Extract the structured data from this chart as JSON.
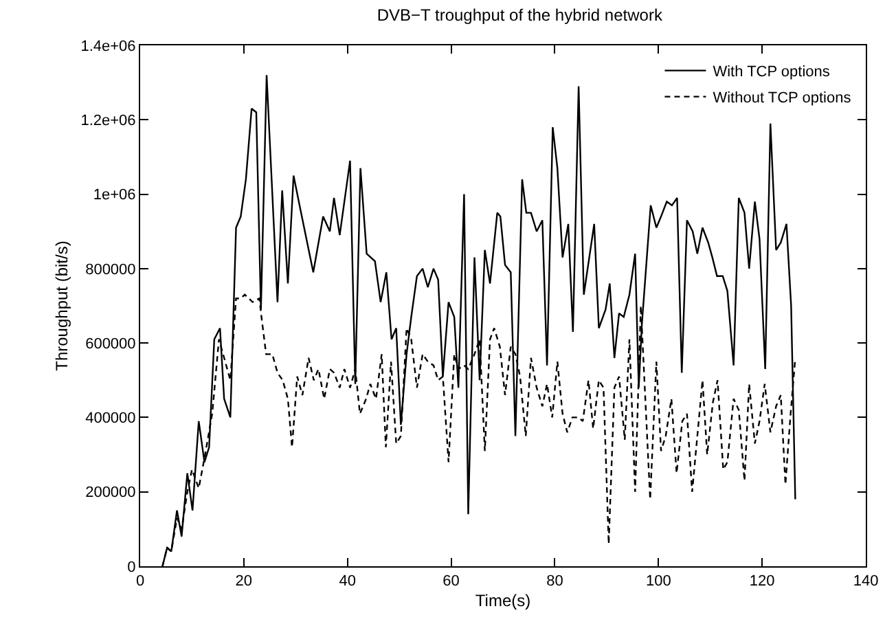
{
  "chart_data": {
    "type": "line",
    "title": "DVB−T troughput of the hybrid network",
    "xlabel": "Time(s)",
    "ylabel": "Throughput (bit/s)",
    "xlim": [
      0,
      140
    ],
    "xticks": [
      0,
      20,
      40,
      60,
      80,
      100,
      120,
      140
    ],
    "ylim": [
      0,
      1400000
    ],
    "yticks": [
      0,
      200000,
      400000,
      600000,
      800000,
      {
        "value": 1000000,
        "label": "1e+06"
      },
      {
        "value": 1200000,
        "label": "1.2e+06"
      },
      {
        "value": 1400000,
        "label": "1.4e+06"
      }
    ],
    "legend": "top right",
    "marker": "none",
    "series": [
      {
        "name": "With TCP options",
        "color": "#000000",
        "line_style": "solid",
        "x": [
          4.3,
          5.2,
          6,
          7.1,
          8,
          9.1,
          10.1,
          11.3,
          12.4,
          13.3,
          14.3,
          15.4,
          16.2,
          17.4,
          18.5,
          19.4,
          20.4,
          21.5,
          22.4,
          23.3,
          24.4,
          26.5,
          27.4,
          28.5,
          29.6,
          30.9,
          33.4,
          35.3,
          36.6,
          37.4,
          38.5,
          40.5,
          41.5,
          42.5,
          43.7,
          45.3,
          46.4,
          47.5,
          48.5,
          49.4,
          50.3,
          51.4,
          52.3,
          53.4,
          54.5,
          55.5,
          56.6,
          57.5,
          58.4,
          59.5,
          60.6,
          61.4,
          62.5,
          63.3,
          64.5,
          65.5,
          66.5,
          67.5,
          68.9,
          69.5,
          70.4,
          71.5,
          72.4,
          73.7,
          74.5,
          75.4,
          76.5,
          77.6,
          78.5,
          79.6,
          80.5,
          81.5,
          82.6,
          83.5,
          84.6,
          85.6,
          87.6,
          88.5,
          89.8,
          90.6,
          91.5,
          92.4,
          93.3,
          94.4,
          95.5,
          96.2,
          96.8,
          98.5,
          99.6,
          100.5,
          101.6,
          102.6,
          103.6,
          104.5,
          105.5,
          106.6,
          107.5,
          108.5,
          109.6,
          110.4,
          111.3,
          112.4,
          113.3,
          114.5,
          115.5,
          116.6,
          117.5,
          118.6,
          119.5,
          120.6,
          121.6,
          122.7,
          123.6,
          124.7,
          125.6,
          126.4
        ],
        "values": [
          0,
          50000,
          40000,
          150000,
          80000,
          250000,
          150000,
          390000,
          280000,
          320000,
          610000,
          640000,
          450000,
          400000,
          910000,
          940000,
          1040000,
          1230000,
          1220000,
          690000,
          1320000,
          710000,
          1010000,
          760000,
          1050000,
          960000,
          790000,
          940000,
          900000,
          990000,
          890000,
          1090000,
          490000,
          1070000,
          840000,
          820000,
          710000,
          790000,
          610000,
          640000,
          380000,
          570000,
          670000,
          780000,
          800000,
          750000,
          800000,
          770000,
          510000,
          710000,
          670000,
          480000,
          1000000,
          140000,
          830000,
          500000,
          850000,
          760000,
          950000,
          940000,
          810000,
          790000,
          350000,
          1040000,
          950000,
          950000,
          900000,
          930000,
          540000,
          1180000,
          1070000,
          830000,
          920000,
          630000,
          1290000,
          730000,
          920000,
          640000,
          690000,
          760000,
          560000,
          680000,
          670000,
          730000,
          840000,
          480000,
          650000,
          970000,
          910000,
          940000,
          980000,
          970000,
          990000,
          520000,
          930000,
          900000,
          840000,
          910000,
          870000,
          830000,
          780000,
          780000,
          740000,
          540000,
          990000,
          950000,
          800000,
          980000,
          880000,
          530000,
          1190000,
          850000,
          870000,
          920000,
          700000,
          180000
        ]
      },
      {
        "name": "Without TCP options",
        "color": "#000000",
        "line_style": "dashed",
        "x": [
          4.3,
          5.2,
          6,
          7.1,
          8,
          9.1,
          10,
          11.3,
          12.4,
          13.9,
          15.2,
          16.2,
          17.4,
          18.5,
          19.4,
          20.2,
          21.7,
          23,
          23.4,
          24.3,
          25.5,
          26.5,
          27.5,
          28.5,
          29.3,
          30.3,
          31.3,
          32.5,
          33.5,
          34.4,
          35.5,
          36.6,
          37.4,
          38.5,
          39.4,
          40.5,
          41.5,
          42.4,
          43.6,
          44.4,
          45.5,
          46.6,
          47.4,
          48.4,
          49.4,
          50.3,
          51.4,
          52.3,
          53.4,
          54.5,
          55.5,
          56.6,
          57.5,
          58.4,
          59.5,
          60.6,
          61.4,
          62.5,
          63.3,
          64.5,
          65.5,
          66.5,
          67.5,
          68.3,
          69.4,
          70.4,
          71.5,
          72.4,
          73.3,
          74.4,
          75.4,
          76.5,
          77.6,
          78.5,
          79.5,
          80.5,
          81.5,
          82.4,
          83.4,
          84.6,
          85.4,
          86.5,
          87.4,
          88.5,
          89.4,
          90.4,
          91.5,
          92.4,
          93.5,
          94.4,
          95.5,
          96.6,
          98.4,
          99.6,
          100.5,
          101.4,
          102.5,
          103.5,
          104.6,
          105.5,
          106.5,
          108.5,
          109.4,
          110.5,
          111.4,
          112.5,
          113.3,
          114.5,
          115.5,
          116.6,
          117.5,
          118.6,
          119.5,
          120.5,
          121.6,
          122.7,
          123.6,
          124.5,
          125.5,
          126.4
        ],
        "values": [
          0,
          50000,
          40000,
          130000,
          100000,
          200000,
          260000,
          210000,
          290000,
          410000,
          610000,
          560000,
          500000,
          720000,
          720000,
          730000,
          710000,
          720000,
          670000,
          570000,
          570000,
          520000,
          500000,
          450000,
          320000,
          510000,
          460000,
          560000,
          500000,
          530000,
          450000,
          530000,
          520000,
          480000,
          530000,
          480000,
          530000,
          410000,
          450000,
          490000,
          450000,
          570000,
          320000,
          550000,
          330000,
          350000,
          640000,
          610000,
          480000,
          570000,
          550000,
          540000,
          500000,
          510000,
          280000,
          570000,
          530000,
          540000,
          530000,
          570000,
          610000,
          310000,
          610000,
          640000,
          590000,
          460000,
          590000,
          570000,
          510000,
          350000,
          560000,
          480000,
          430000,
          490000,
          400000,
          550000,
          410000,
          360000,
          400000,
          400000,
          390000,
          500000,
          370000,
          500000,
          480000,
          60000,
          480000,
          510000,
          340000,
          610000,
          200000,
          700000,
          180000,
          550000,
          310000,
          350000,
          450000,
          250000,
          390000,
          410000,
          200000,
          500000,
          300000,
          440000,
          500000,
          260000,
          280000,
          450000,
          420000,
          230000,
          490000,
          330000,
          390000,
          490000,
          360000,
          430000,
          460000,
          220000,
          410000,
          560000
        ]
      }
    ]
  }
}
